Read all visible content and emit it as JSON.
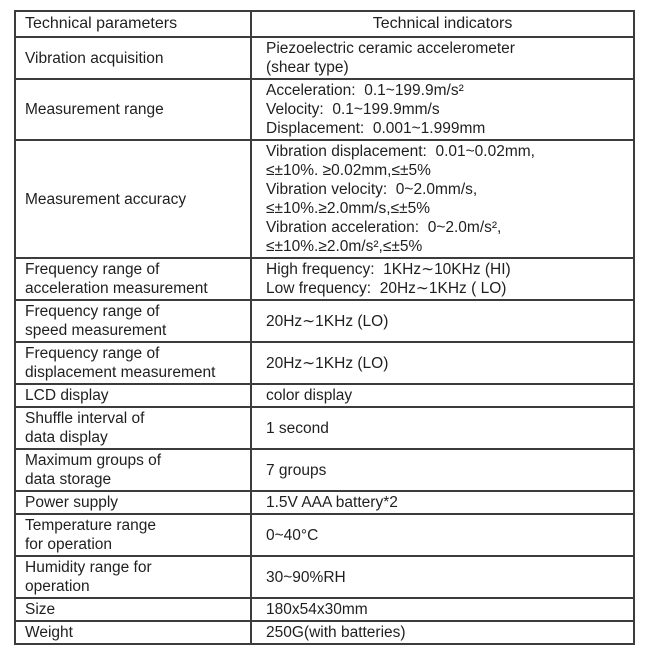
{
  "theme": {
    "background": "#ffffff",
    "border_color": "#3c3c3c",
    "text_color": "#1f1f1f"
  },
  "table": {
    "headers": [
      "Technical parameters",
      "Technical indicators"
    ],
    "rows": [
      {
        "param": [
          "Vibration acquisition"
        ],
        "indicator": [
          "Piezoelectric ceramic accelerometer",
          "(shear type)"
        ]
      },
      {
        "param": [
          "Measurement range"
        ],
        "indicator": [
          "Acceleration:  0.1~199.9m/s²",
          "Velocity:  0.1~199.9mm/s",
          "Displacement:  0.001~1.999mm"
        ]
      },
      {
        "param": [
          "Measurement accuracy"
        ],
        "indicator": [
          "Vibration displacement:  0.01~0.02mm,",
          "≤±10%. ≥0.02mm,≤±5%",
          "Vibration velocity:  0~2.0mm/s,",
          "≤±10%.≥2.0mm/s,≤±5%",
          "Vibration acceleration:  0~2.0m/s²,",
          "≤±10%.≥2.0m/s²,≤±5%"
        ]
      },
      {
        "param": [
          "Frequency range of",
          "acceleration measurement"
        ],
        "indicator": [
          "High frequency:  1KHz∼10KHz (HI)",
          "Low frequency:  20Hz∼1KHz ( LO)"
        ]
      },
      {
        "param": [
          "Frequency range of",
          "speed measurement"
        ],
        "indicator": [
          "20Hz∼1KHz (LO)"
        ]
      },
      {
        "param": [
          "Frequency range of",
          "displacement measurement"
        ],
        "indicator": [
          "20Hz∼1KHz (LO)"
        ]
      },
      {
        "param": [
          "LCD display"
        ],
        "indicator": [
          "color display"
        ]
      },
      {
        "param": [
          "Shuffle interval of",
          "data display"
        ],
        "indicator": [
          "1 second"
        ]
      },
      {
        "param": [
          "Maximum groups of",
          "data storage"
        ],
        "indicator": [
          "7 groups"
        ]
      },
      {
        "param": [
          "Power supply"
        ],
        "indicator": [
          "1.5V AAA battery*2"
        ]
      },
      {
        "param": [
          "Temperature range",
          "for operation"
        ],
        "indicator": [
          "0~40°C"
        ]
      },
      {
        "param": [
          "Humidity range for",
          "operation"
        ],
        "indicator": [
          "30~90%RH"
        ]
      },
      {
        "param": [
          "Size"
        ],
        "indicator": [
          "180x54x30mm"
        ]
      },
      {
        "param": [
          "Weight"
        ],
        "indicator": [
          "250G(with batteries)"
        ]
      }
    ]
  }
}
